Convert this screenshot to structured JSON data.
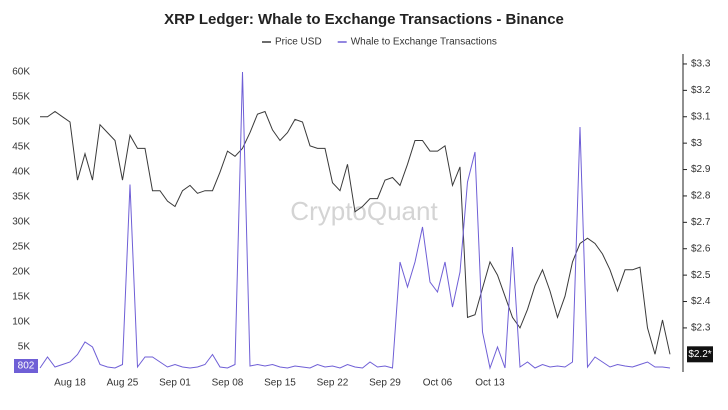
{
  "chart_data": {
    "type": "line",
    "title": "XRP Ledger: Whale to Exchange Transactions - Binance",
    "watermark": "CryptoQuant",
    "legend": "top",
    "categories": [
      null,
      null,
      null,
      null,
      "Aug 18",
      null,
      null,
      null,
      null,
      null,
      null,
      "Aug 25",
      null,
      null,
      null,
      null,
      null,
      null,
      "Sep 01",
      null,
      null,
      null,
      null,
      null,
      null,
      "Sep 08",
      null,
      null,
      null,
      null,
      null,
      null,
      "Sep 15",
      null,
      null,
      null,
      null,
      null,
      null,
      "Sep 22",
      null,
      null,
      null,
      null,
      null,
      null,
      "Sep 29",
      null,
      null,
      null,
      null,
      null,
      null,
      "Oct 06",
      null,
      null,
      null,
      null,
      null,
      null,
      "Oct 13",
      null,
      null,
      null,
      null,
      null,
      null,
      null,
      null,
      null,
      null,
      null,
      null,
      null,
      null,
      null,
      null,
      null,
      null,
      null,
      null,
      null,
      null,
      null,
      null
    ],
    "series": [
      {
        "name": "Price USD",
        "color": "#3a3a3a",
        "axis": "y2",
        "last_value_label": "$2.2*",
        "values": [
          3.1,
          3.1,
          3.12,
          3.1,
          3.08,
          2.86,
          2.96,
          2.86,
          3.07,
          3.04,
          3.01,
          2.86,
          3.03,
          2.98,
          2.98,
          2.82,
          2.82,
          2.78,
          2.76,
          2.82,
          2.84,
          2.81,
          2.82,
          2.82,
          2.89,
          2.97,
          2.95,
          2.98,
          3.04,
          3.11,
          3.12,
          3.05,
          3.01,
          3.04,
          3.09,
          3.08,
          2.99,
          2.98,
          2.98,
          2.85,
          2.82,
          2.92,
          2.74,
          2.76,
          2.79,
          2.79,
          2.86,
          2.87,
          2.84,
          2.92,
          3.01,
          3.01,
          2.97,
          2.97,
          2.99,
          2.84,
          2.91,
          2.34,
          2.35,
          2.45,
          2.55,
          2.5,
          2.42,
          2.34,
          2.3,
          2.37,
          2.46,
          2.52,
          2.44,
          2.34,
          2.42,
          2.55,
          2.62,
          2.64,
          2.62,
          2.58,
          2.52,
          2.44,
          2.52,
          2.52,
          2.53,
          2.3,
          2.2,
          2.33,
          2.2
        ]
      },
      {
        "name": "Whale to Exchange Transactions",
        "color": "#6f5fd6",
        "last_value_label": "802",
        "values": [
          800,
          3000,
          1000,
          1500,
          2000,
          3500,
          6000,
          5000,
          1500,
          1000,
          800,
          1500,
          37500,
          1000,
          3000,
          3000,
          2000,
          1000,
          1500,
          1000,
          800,
          1000,
          1500,
          3500,
          1000,
          800,
          1500,
          60000,
          1200,
          1500,
          1200,
          1500,
          1000,
          800,
          1200,
          1000,
          800,
          1500,
          1000,
          1200,
          800,
          1500,
          1000,
          800,
          2000,
          1000,
          1200,
          800,
          22000,
          17000,
          22000,
          29000,
          18000,
          16000,
          22000,
          13000,
          20000,
          38000,
          44000,
          8000,
          800,
          5000,
          800,
          25000,
          1000,
          2000,
          800,
          1500,
          1000,
          1200,
          1000,
          2000,
          49000,
          1000,
          3000,
          2000,
          1000,
          1500,
          1200,
          1000,
          1500,
          2000,
          1000,
          1000,
          802
        ]
      }
    ],
    "ylim": [
      0,
      62400
    ],
    "yticks": [
      {
        "value": 5000,
        "label": "5K"
      },
      {
        "value": 10000,
        "label": "10K"
      },
      {
        "value": 15000,
        "label": "15K"
      },
      {
        "value": 20000,
        "label": "20K"
      },
      {
        "value": 25000,
        "label": "25K"
      },
      {
        "value": 30000,
        "label": "30K"
      },
      {
        "value": 35000,
        "label": "35K"
      },
      {
        "value": 40000,
        "label": "40K"
      },
      {
        "value": 45000,
        "label": "45K"
      },
      {
        "value": 50000,
        "label": "50K"
      },
      {
        "value": 55000,
        "label": "55K"
      },
      {
        "value": 60000,
        "label": "60K"
      }
    ],
    "y2lim": [
      2.133,
      3.315
    ],
    "y2ticks": [
      {
        "value": 2.3,
        "label": "$2.3"
      },
      {
        "value": 2.4,
        "label": "$2.4"
      },
      {
        "value": 2.5,
        "label": "$2.5"
      },
      {
        "value": 2.6,
        "label": "$2.6"
      },
      {
        "value": 2.7,
        "label": "$2.7"
      },
      {
        "value": 2.8,
        "label": "$2.8"
      },
      {
        "value": 2.9,
        "label": "$2.9"
      },
      {
        "value": 3,
        "label": "$3"
      },
      {
        "value": 3.1,
        "label": "$3.1"
      },
      {
        "value": 3.2,
        "label": "$3.2"
      },
      {
        "value": 3.3,
        "label": "$3.3"
      }
    ],
    "grid": false
  }
}
